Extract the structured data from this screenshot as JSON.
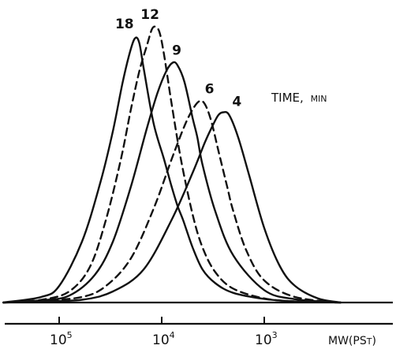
{
  "chart_data": {
    "type": "line",
    "xlabel": {
      "main": "MW(PS",
      "sub": "T",
      "close": ")"
    },
    "x_scale": "log-reversed",
    "xlim": [
      400000,
      180
    ],
    "x_ticks": [
      {
        "value": 100000,
        "base": "10",
        "exp": "5"
      },
      {
        "value": 10000,
        "base": "10",
        "exp": "4"
      },
      {
        "value": 1000,
        "base": "10",
        "exp": "3"
      }
    ],
    "legend_title": {
      "main": "TIME,",
      "small": "MIN"
    },
    "ylim": [
      0,
      1
    ],
    "series": [
      {
        "name": "18",
        "style": "solid",
        "x": [
          350000,
          150000,
          100000,
          60000,
          40000,
          30000,
          24000,
          20000,
          18000,
          16500,
          15000,
          12000,
          9500,
          8000,
          7000,
          6200,
          5000,
          4000,
          3000,
          2000,
          1000,
          500,
          180
        ],
        "y": [
          0.0,
          0.02,
          0.06,
          0.22,
          0.43,
          0.62,
          0.8,
          0.92,
          0.96,
          0.94,
          0.85,
          0.65,
          0.52,
          0.42,
          0.35,
          0.3,
          0.2,
          0.12,
          0.07,
          0.035,
          0.013,
          0.004,
          0.0
        ]
      },
      {
        "name": "12",
        "style": "dashed",
        "x": [
          350000,
          150000,
          80000,
          50000,
          35000,
          25000,
          20000,
          16500,
          14000,
          12500,
          11500,
          10500,
          9500,
          8000,
          6500,
          5000,
          4000,
          3000,
          2000,
          1000,
          500,
          180
        ],
        "y": [
          0.0,
          0.01,
          0.04,
          0.13,
          0.3,
          0.52,
          0.7,
          0.84,
          0.93,
          0.99,
          1.0,
          0.98,
          0.9,
          0.72,
          0.52,
          0.32,
          0.2,
          0.11,
          0.05,
          0.015,
          0.004,
          0.0
        ]
      },
      {
        "name": "9",
        "style": "solid",
        "x": [
          350000,
          150000,
          80000,
          45000,
          30000,
          20000,
          14000,
          11000,
          9000,
          7800,
          7000,
          6000,
          5000,
          4500,
          4000,
          3000,
          2000,
          1000,
          500,
          180
        ],
        "y": [
          0.0,
          0.008,
          0.025,
          0.1,
          0.22,
          0.42,
          0.63,
          0.76,
          0.84,
          0.87,
          0.86,
          0.8,
          0.67,
          0.6,
          0.5,
          0.33,
          0.17,
          0.045,
          0.012,
          0.0
        ]
      },
      {
        "name": "6",
        "style": "dashed",
        "x": [
          350000,
          150000,
          60000,
          35000,
          20000,
          12000,
          8000,
          6000,
          5000,
          4300,
          3800,
          3300,
          2800,
          2300,
          2000,
          1500,
          1000,
          500,
          180
        ],
        "y": [
          0.0,
          0.006,
          0.02,
          0.06,
          0.16,
          0.34,
          0.52,
          0.64,
          0.7,
          0.73,
          0.72,
          0.66,
          0.55,
          0.42,
          0.33,
          0.19,
          0.08,
          0.02,
          0.0
        ]
      },
      {
        "name": "4",
        "style": "solid",
        "x": [
          350000,
          150000,
          60000,
          30000,
          15000,
          8000,
          5000,
          3800,
          3200,
          2800,
          2500,
          2200,
          1800,
          1400,
          1000,
          700,
          500,
          300,
          180
        ],
        "y": [
          0.0,
          0.004,
          0.01,
          0.04,
          0.12,
          0.3,
          0.47,
          0.58,
          0.64,
          0.68,
          0.69,
          0.68,
          0.6,
          0.46,
          0.27,
          0.13,
          0.06,
          0.015,
          0.0
        ]
      }
    ]
  }
}
